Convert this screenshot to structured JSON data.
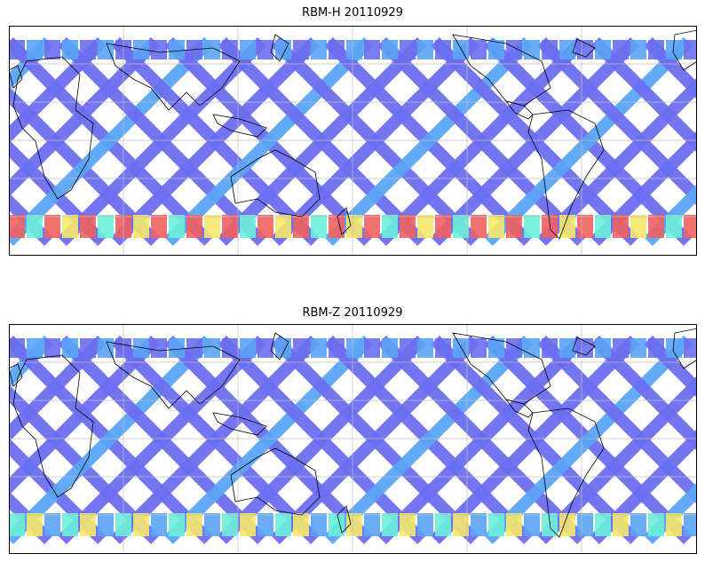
{
  "panels": [
    {
      "title": "RBM-H 20110929",
      "colormap": "jet",
      "levels": {
        "north_band": "low",
        "south_band": "high",
        "tropics": "low"
      }
    },
    {
      "title": "RBM-Z 20110929",
      "colormap": "jet",
      "levels": {
        "north_band": "low",
        "south_band": "moderate",
        "tropics": "low"
      }
    }
  ],
  "palette": {
    "low": "#6b6ef0",
    "low2": "#5aa4f5",
    "mid": "#6bf0d8",
    "midhigh": "#f5e86b",
    "high": "#f06060",
    "coast": "#000000",
    "grid": "#bfbfbf"
  },
  "map": {
    "projection": "cylindrical",
    "gridlines": true,
    "coastlines": true
  }
}
